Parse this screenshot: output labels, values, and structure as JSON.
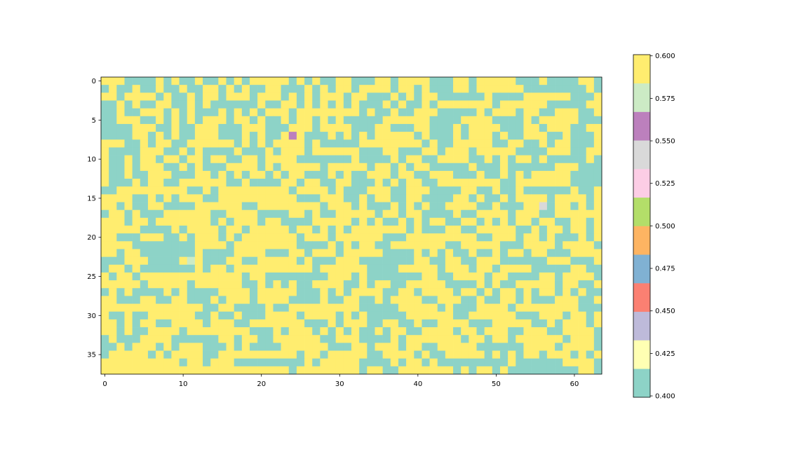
{
  "chart_data": {
    "type": "heatmap",
    "title": "",
    "xlabel": "",
    "ylabel": "",
    "cols": 64,
    "rows": 38,
    "xlim": [
      -0.5,
      63.5
    ],
    "ylim": [
      37.5,
      -0.5
    ],
    "x_ticks": [
      0,
      10,
      20,
      30,
      40,
      50,
      60
    ],
    "y_ticks": [
      0,
      5,
      10,
      15,
      20,
      25,
      30,
      35
    ],
    "colormap": "Set3",
    "value_range": [
      0.4,
      0.6
    ],
    "colorbar_ticks": [
      "0.400",
      "0.425",
      "0.450",
      "0.475",
      "0.500",
      "0.525",
      "0.550",
      "0.575",
      "0.600"
    ],
    "colorbar_colors": [
      "#8dd3c7",
      "#ffffb3",
      "#bebada",
      "#fb8072",
      "#80b1d3",
      "#fdb462",
      "#b3de69",
      "#fccde5",
      "#d9d9d9",
      "#bc80bd",
      "#ccebc5",
      "#ffed6f"
    ],
    "grid": false,
    "values_description": "Binary field of 0.4 and 0.6 values with a few isolated intermediate cells",
    "special_cells": [
      {
        "row": 7,
        "col": 24,
        "value": 0.55
      },
      {
        "row": 16,
        "col": 56,
        "value": 0.54
      },
      {
        "row": 23,
        "col": 11,
        "value": 0.58
      }
    ],
    "values": [
      "1110000101001001010111110101001100011011110001101111100010000110",
      "0100100100100110101001100010101101111011010001101111110000000010",
      "1101111010010110111011101010111011000101011000000100001111110001",
      "0010100110010100000010011010101010001010010111111101111110000011",
      "0010011101010001010101110111111110100100111000001011101100111001",
      "0011100101010111011010010110101000001111110000111100001011111000",
      "0000111001001110001110001110111100011000110001011110001101110011",
      "0000110101001110001010011100010101011111010001011101001110010001",
      "1110010110011111101010111101000001111111101001111100110010110001",
      "1000011100101000010001011101111110001100011011101111100001110011",
      "1001011011011011001101111000000010000101100111100101011010000010",
      "1001011100101000111101011111011111011010110000010001000000111000",
      "1001001110001101010110101100010100111011001110001001010111110000",
      "1000101100111111001000011011001100010101100111111110011111110000",
      "0011111111100101111111110111101000111001110000110010010000001001",
      "1111001010111001111111111000111001011001100001101001011110111101",
      "1101001100001111110011111111011101000101010011110010001110110101",
      "0110100011111100111100001101001111101101100001001111011100111111",
      "1110110111111101011101100001111101010010101100110101011011001101",
      "1111100001011110110111110110101011111110100011001111100101101101",
      "1100011100101110101111111011101111110001111111110011101101000101",
      "1111000000001111011111111000010101100111111100111110001111011110",
      "1101100000001000011110001101110111110000101010010010110110001111",
      "0001110000101000110011111010001110000000110011001110000001110001",
      "0110100000001011011111111110111111000011111011101101111000001100",
      "1011011111111111110110000000011101000000011001111011000011011110",
      "1111101111101111110010101001111001011001111100001010011111011001",
      "0101000010100001111011111000101011110011011110110101101011010100",
      "1100011001100010111011110000100110010111100111001001101000111001",
      "1111111111111001100001001111111110000011111010001111011111111000",
      "1001001111110010010001111011110101000001111110011111100011101101",
      "1101011001111011100111111100010111001100100111100011111001011101",
      "1101001111011111111000101110101010010110011110110111001110011110",
      "0100011110000001101100111111001110000101111111011011011111101110",
      "0010111010111000101000011111100011011101100111110000001111011110",
      "0111110101111001111111111011011111001111010011111010101101110101",
      "1111111111011011100000000010111110000101101000000000100000011110",
      "1111111111111111111111110111111110110011111110101101000000000110"
    ]
  }
}
